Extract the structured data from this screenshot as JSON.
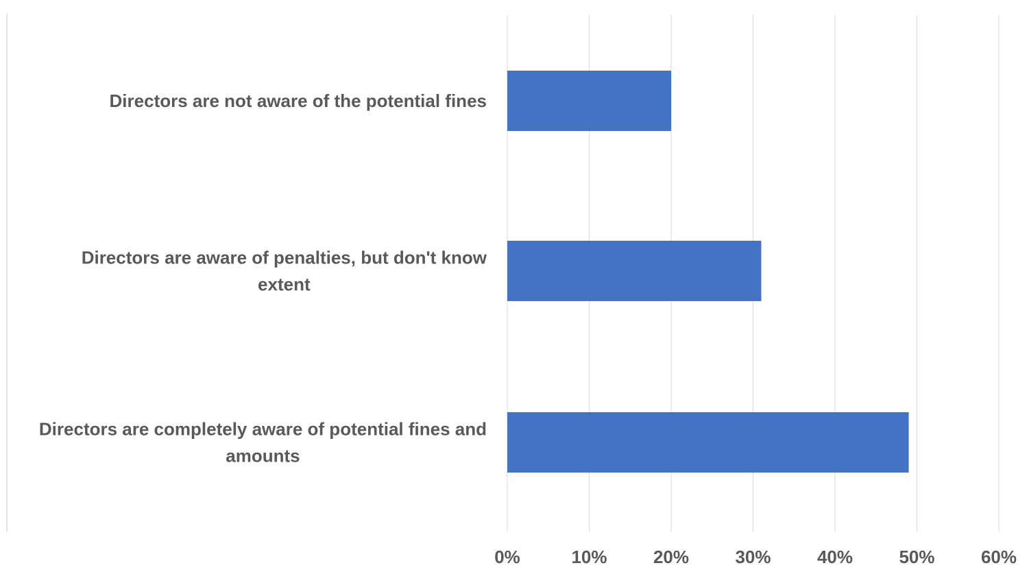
{
  "chart_data": {
    "type": "bar",
    "orientation": "horizontal",
    "categories": [
      [
        "Directors are not aware of the potential fines"
      ],
      [
        "Directors are aware of penalties, but don't know",
        "extent"
      ],
      [
        "Directors are completely aware of potential fines and",
        "amounts"
      ]
    ],
    "values": [
      0.2,
      0.31,
      0.49
    ],
    "xlim": [
      0,
      0.6
    ],
    "ticks": [
      "0%",
      "10%",
      "20%",
      "30%",
      "40%",
      "50%",
      "60%"
    ],
    "title": "",
    "xlabel": "",
    "ylabel": "",
    "grid": true,
    "bar_color": "#4472c4"
  }
}
